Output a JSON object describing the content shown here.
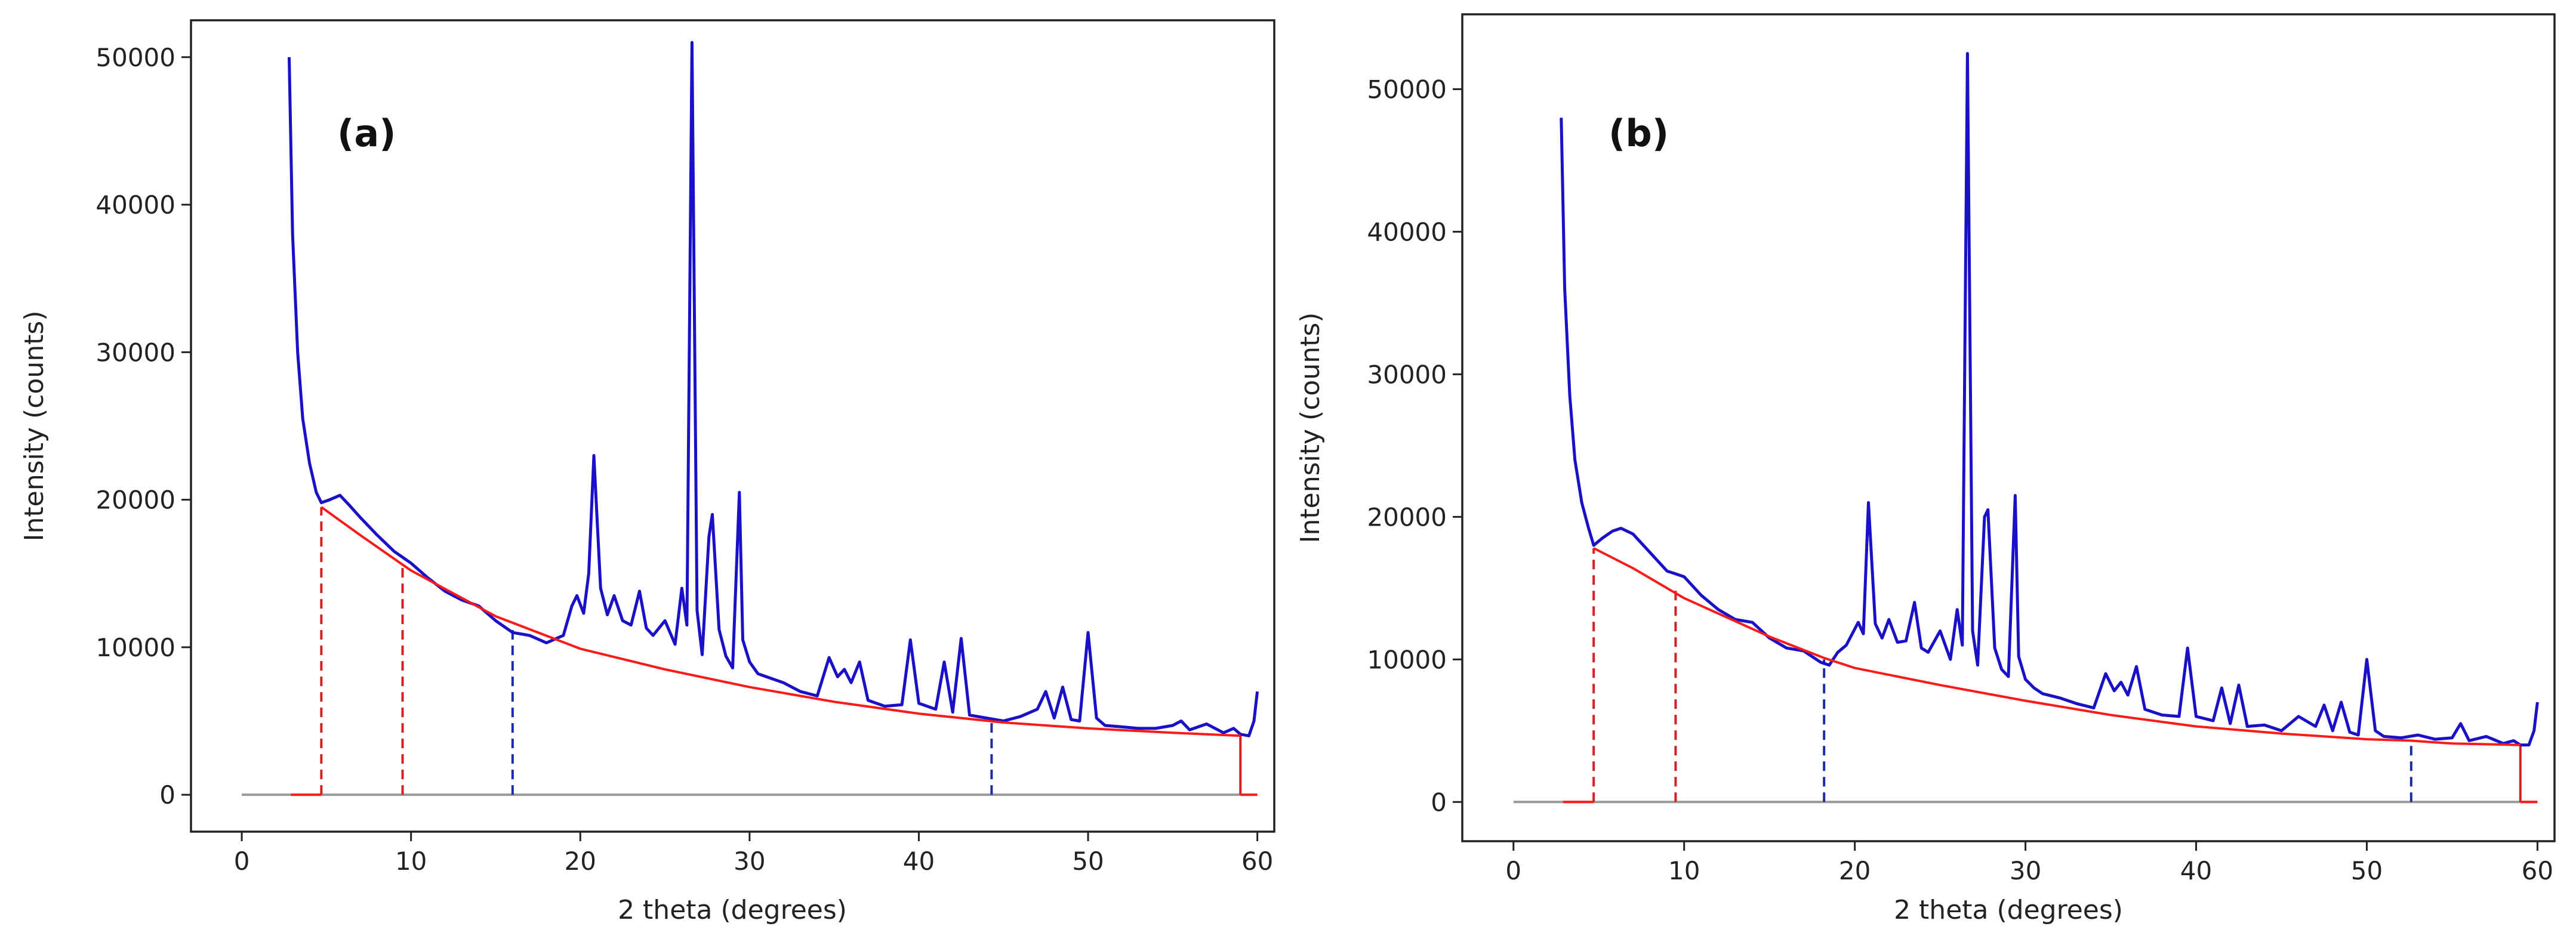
{
  "colors": {
    "xrd_trace": "#1a10c8",
    "background_fit": "#ff1a1a",
    "boundary_red": "#d42020",
    "boundary_blue": "#1a2aa8",
    "baseline": "#9a9a9a",
    "axis": "#222222"
  },
  "chart_data": [
    {
      "type": "line",
      "panel_label": "(a)",
      "xlabel": "2 theta (degrees)",
      "ylabel": "Intensity (counts)",
      "xlim": [
        -3,
        61
      ],
      "ylim": [
        -2500,
        52500
      ],
      "xticks": [
        0,
        10,
        20,
        30,
        40,
        50,
        60
      ],
      "yticks": [
        0,
        10000,
        20000,
        30000,
        40000,
        50000
      ],
      "grid": false,
      "series": [
        {
          "role": "xrd_pattern",
          "x": [
            2.8,
            3.0,
            3.3,
            3.6,
            4.0,
            4.4,
            4.7,
            5.2,
            5.8,
            6.3,
            7.0,
            8.0,
            9.0,
            9.5,
            10.0,
            11.0,
            12.0,
            13.0,
            14.0,
            15.0,
            16.0,
            17.0,
            18.0,
            19.0,
            19.5,
            19.8,
            20.2,
            20.5,
            20.8,
            21.2,
            21.6,
            22.0,
            22.5,
            23.0,
            23.5,
            23.9,
            24.3,
            25.0,
            25.6,
            26.0,
            26.3,
            26.6,
            26.9,
            27.2,
            27.6,
            27.8,
            28.2,
            28.6,
            29.0,
            29.4,
            29.6,
            30.0,
            30.5,
            31.0,
            32.0,
            33.0,
            34.0,
            34.7,
            35.2,
            35.6,
            36.0,
            36.5,
            37.0,
            38.0,
            39.0,
            39.5,
            40.0,
            41.0,
            41.5,
            42.0,
            42.5,
            43.0,
            44.0,
            45.0,
            46.0,
            47.0,
            47.5,
            48.0,
            48.5,
            49.0,
            49.5,
            50.0,
            50.5,
            51.0,
            52.0,
            53.0,
            54.0,
            55.0,
            55.5,
            56.0,
            57.0,
            58.0,
            58.6,
            59.0,
            59.5,
            59.8,
            60.0
          ],
          "y": [
            50000,
            38000,
            30000,
            25500,
            22500,
            20500,
            19800,
            20000,
            20300,
            19700,
            18800,
            17600,
            16500,
            16100,
            15700,
            14700,
            13800,
            13200,
            12800,
            11800,
            11000,
            10800,
            10300,
            10800,
            12800,
            13500,
            12300,
            15000,
            23000,
            14000,
            12200,
            13500,
            11800,
            11500,
            13800,
            11300,
            10800,
            11800,
            10200,
            14000,
            11500,
            51000,
            12500,
            9500,
            17500,
            19000,
            11200,
            9400,
            8600,
            20500,
            10500,
            9000,
            8200,
            8000,
            7600,
            7000,
            6700,
            9300,
            8000,
            8500,
            7600,
            9000,
            6400,
            6000,
            6100,
            10500,
            6200,
            5800,
            9000,
            5600,
            10600,
            5400,
            5200,
            5000,
            5300,
            5800,
            7000,
            5200,
            7300,
            5100,
            5000,
            11000,
            5200,
            4700,
            4600,
            4500,
            4500,
            4700,
            5000,
            4400,
            4800,
            4200,
            4500,
            4100,
            4000,
            5000,
            7000
          ]
        },
        {
          "role": "background_fit",
          "x": [
            4.7,
            7,
            10,
            15,
            20,
            25,
            30,
            35,
            40,
            45,
            50,
            55,
            59
          ],
          "y": [
            19500,
            17600,
            15200,
            12100,
            9900,
            8500,
            7300,
            6300,
            5500,
            4900,
            4500,
            4200,
            4000
          ]
        }
      ],
      "boundary_lines": [
        {
          "x": 4.7,
          "y_top": 19500,
          "color": "red",
          "style": "dashed"
        },
        {
          "x": 9.5,
          "y_top": 15600,
          "color": "red",
          "style": "dashed"
        },
        {
          "x": 16.0,
          "y_top": 11300,
          "color": "blue",
          "style": "dashed"
        },
        {
          "x": 44.3,
          "y_top": 5000,
          "color": "blue",
          "style": "dashed"
        },
        {
          "x": 59.0,
          "y_top": 4000,
          "color": "red",
          "style": "solid"
        }
      ],
      "baseline": {
        "x_start": 0,
        "x_end": 60
      }
    },
    {
      "type": "line",
      "panel_label": "(b)",
      "xlabel": "2 theta (degrees)",
      "ylabel": "Intensity (counts)",
      "xlim": [
        -3,
        61
      ],
      "ylim": [
        -2750,
        55250
      ],
      "xticks": [
        0,
        10,
        20,
        30,
        40,
        50,
        60
      ],
      "yticks": [
        0,
        10000,
        20000,
        30000,
        40000,
        50000
      ],
      "grid": false,
      "series": [
        {
          "role": "xrd_pattern",
          "x": [
            2.8,
            3.0,
            3.3,
            3.6,
            4.0,
            4.4,
            4.7,
            5.2,
            5.8,
            6.3,
            7.0,
            8.0,
            9.0,
            9.5,
            10.0,
            11.0,
            12.0,
            13.0,
            14.0,
            15.0,
            16.0,
            17.0,
            18.0,
            18.5,
            19.0,
            19.5,
            20.2,
            20.5,
            20.8,
            21.2,
            21.6,
            22.0,
            22.5,
            23.0,
            23.5,
            23.9,
            24.3,
            25.0,
            25.6,
            26.0,
            26.3,
            26.6,
            26.9,
            27.2,
            27.6,
            27.8,
            28.2,
            28.6,
            29.0,
            29.4,
            29.6,
            30.0,
            30.5,
            31.0,
            32.0,
            33.0,
            34.0,
            34.7,
            35.2,
            35.6,
            36.0,
            36.5,
            37.0,
            38.0,
            39.0,
            39.5,
            40.0,
            41.0,
            41.5,
            42.0,
            42.5,
            43.0,
            44.0,
            45.0,
            46.0,
            47.0,
            47.5,
            48.0,
            48.5,
            49.0,
            49.5,
            50.0,
            50.5,
            51.0,
            52.0,
            53.0,
            54.0,
            55.0,
            55.5,
            56.0,
            57.0,
            58.0,
            58.6,
            59.0,
            59.5,
            59.8,
            60.0
          ],
          "y": [
            48000,
            36000,
            28500,
            24000,
            21000,
            19200,
            18000,
            18500,
            19000,
            19200,
            18800,
            17500,
            16200,
            16000,
            15800,
            14500,
            13500,
            12800,
            12600,
            11500,
            10800,
            10600,
            9800,
            9600,
            10500,
            11000,
            12600,
            11800,
            21000,
            12500,
            11500,
            12800,
            11200,
            11300,
            14000,
            10800,
            10500,
            12000,
            10000,
            13500,
            11000,
            52500,
            12000,
            9600,
            20000,
            20500,
            10800,
            9300,
            8800,
            21500,
            10200,
            8600,
            8000,
            7600,
            7300,
            6900,
            6600,
            9000,
            7800,
            8400,
            7500,
            9500,
            6500,
            6100,
            6000,
            10800,
            6000,
            5700,
            8000,
            5500,
            8200,
            5300,
            5400,
            5000,
            6000,
            5300,
            6800,
            5000,
            7000,
            4900,
            4700,
            10000,
            5000,
            4600,
            4500,
            4700,
            4400,
            4500,
            5500,
            4300,
            4600,
            4100,
            4300,
            4000,
            4000,
            5000,
            7000
          ]
        },
        {
          "role": "background_fit",
          "x": [
            4.7,
            7,
            10,
            15,
            18.2,
            20,
            25,
            30,
            35,
            40,
            45,
            50,
            52.6,
            55,
            59
          ],
          "y": [
            17800,
            16400,
            14300,
            11600,
            10100,
            9400,
            8200,
            7100,
            6100,
            5300,
            4800,
            4400,
            4300,
            4100,
            4000
          ]
        }
      ],
      "boundary_lines": [
        {
          "x": 4.7,
          "y_top": 17800,
          "color": "red",
          "style": "dashed"
        },
        {
          "x": 9.5,
          "y_top": 15200,
          "color": "red",
          "style": "dashed"
        },
        {
          "x": 18.2,
          "y_top": 10000,
          "color": "blue",
          "style": "dashed"
        },
        {
          "x": 52.6,
          "y_top": 4300,
          "color": "blue",
          "style": "dashed"
        },
        {
          "x": 59.0,
          "y_top": 4000,
          "color": "red",
          "style": "solid"
        }
      ],
      "baseline": {
        "x_start": 0,
        "x_end": 60
      }
    }
  ]
}
